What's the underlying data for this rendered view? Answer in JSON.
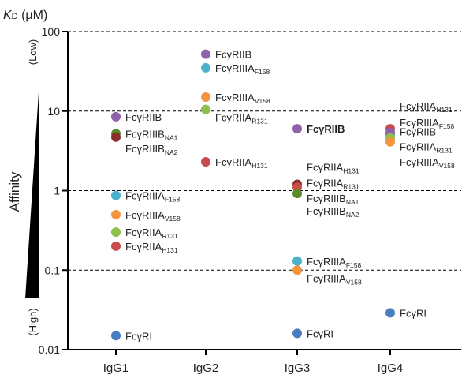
{
  "chart_data": {
    "type": "scatter",
    "ylabel_main": "Affinity",
    "y_title_prefix": "K",
    "y_title_subscript": "D",
    "y_title_unit": " (μM)",
    "y_scale": "log",
    "ylim": [
      0.01,
      100
    ],
    "y_ticks": [
      {
        "value": 100,
        "label": "100"
      },
      {
        "value": 10,
        "label": "10"
      },
      {
        "value": 1,
        "label": "1"
      },
      {
        "value": 0.1,
        "label": "0.1"
      },
      {
        "value": 0.01,
        "label": "0.01"
      }
    ],
    "gridlines": [
      100,
      10,
      1,
      0.1
    ],
    "low_label": "(Low)",
    "high_label": "(High)",
    "categories": [
      "IgG1",
      "IgG2",
      "IgG3",
      "IgG4"
    ],
    "points": [
      {
        "category": "IgG1",
        "value": 8.5,
        "color": "#8f62ab",
        "label_main": "FcγRIIB",
        "label_sub": "",
        "label_dy": 0
      },
      {
        "category": "IgG1",
        "value": 5.2,
        "color": "#5a8a2c",
        "label_main": "FcγRIIIB",
        "label_sub": "NA1",
        "label_dy": 0
      },
      {
        "category": "IgG1",
        "value": 4.7,
        "color": "#8a2e2c",
        "label_main": "FcγRIIIB",
        "label_sub": "NA2",
        "label_dy": 14
      },
      {
        "category": "IgG1",
        "value": 0.87,
        "color": "#48b2ca",
        "label_main": "FcγRIIIA",
        "label_sub": "F158",
        "label_dy": 0
      },
      {
        "category": "IgG1",
        "value": 0.5,
        "color": "#f5943e",
        "label_main": "FcγRIIIA",
        "label_sub": "V158",
        "label_dy": 0
      },
      {
        "category": "IgG1",
        "value": 0.3,
        "color": "#8fbf4d",
        "label_main": "FcγRIIA",
        "label_sub": "R131",
        "label_dy": 0
      },
      {
        "category": "IgG1",
        "value": 0.2,
        "color": "#c94b4b",
        "label_main": "FcγRIIA",
        "label_sub": "H131",
        "label_dy": 0
      },
      {
        "category": "IgG1",
        "value": 0.015,
        "color": "#4a7cc0",
        "label_main": "FcγRI",
        "label_sub": "",
        "label_dy": 0
      },
      {
        "category": "IgG2",
        "value": 52,
        "color": "#8f62ab",
        "label_main": "FcγRIIB",
        "label_sub": "",
        "label_dy": 0
      },
      {
        "category": "IgG2",
        "value": 35,
        "color": "#48b2ca",
        "label_main": "FcγRIIIA",
        "label_sub": "F158",
        "label_dy": 0
      },
      {
        "category": "IgG2",
        "value": 15,
        "color": "#f5943e",
        "label_main": "FcγRIIIA",
        "label_sub": "V158",
        "label_dy": 0
      },
      {
        "category": "IgG2",
        "value": 10.5,
        "color": "#8fbf4d",
        "label_main": "FcγRIIA",
        "label_sub": "R131",
        "label_dy": 10
      },
      {
        "category": "IgG2",
        "value": 2.3,
        "color": "#c94b4b",
        "label_main": "FcγRIIA",
        "label_sub": "H131",
        "label_dy": 0
      },
      {
        "category": "IgG3",
        "value": 6.0,
        "color": "#8f62ab",
        "label_main": "FcγRIIB",
        "label_sub": "",
        "label_dy": 0,
        "bold": true
      },
      {
        "category": "IgG3",
        "value": 1.2,
        "color": "#8a2e2c",
        "label_main": "FcγRIIA",
        "label_sub": "H131",
        "label_dy": -22
      },
      {
        "category": "IgG3",
        "value": 1.1,
        "color": "#c94b4b",
        "label_main": "FcγRIIA",
        "label_sub": "R131",
        "label_dy": -6
      },
      {
        "category": "IgG3",
        "value": 0.92,
        "color": "#5a8a2c",
        "label_main": "FcγRIIIB",
        "label_sub": "NA1",
        "label_dy": 6
      },
      {
        "category": "IgG3",
        "value": 0.92,
        "color": "#5a8a2c",
        "label_main": "FcγRIIIB",
        "label_sub": "NA2",
        "label_dy": 22,
        "no_marker": true
      },
      {
        "category": "IgG3",
        "value": 0.13,
        "color": "#48b2ca",
        "label_main": "FcγRIIIA",
        "label_sub": "F158",
        "label_dy": 0
      },
      {
        "category": "IgG3",
        "value": 0.1,
        "color": "#f5943e",
        "label_main": "FcγRIIIA",
        "label_sub": "V158",
        "label_dy": 10
      },
      {
        "category": "IgG3",
        "value": 0.016,
        "color": "#4a7cc0",
        "label_main": "FcγRI",
        "label_sub": "",
        "label_dy": 0
      },
      {
        "category": "IgG4",
        "value": 6.0,
        "color": "#c94b4b",
        "label_main": "FcγRIIA",
        "label_sub": "H131",
        "label_dy": -29
      },
      {
        "category": "IgG4",
        "value": 5.0,
        "color": "#48b2ca",
        "label_main": "FcγRIIIA",
        "label_sub": "F158",
        "label_dy": -16
      },
      {
        "category": "IgG4",
        "value": 5.4,
        "color": "#8f62ab",
        "label_main": "FcγRIIB",
        "label_sub": "",
        "label_dy": -1
      },
      {
        "category": "IgG4",
        "value": 4.6,
        "color": "#8fbf4d",
        "label_main": "FcγRIIA",
        "label_sub": "R131",
        "label_dy": 11
      },
      {
        "category": "IgG4",
        "value": 4.1,
        "color": "#f5943e",
        "label_main": "FcγRIIIA",
        "label_sub": "V158",
        "label_dy": 25
      },
      {
        "category": "IgG4",
        "value": 0.029,
        "color": "#4a7cc0",
        "label_main": "FcγRI",
        "label_sub": "",
        "label_dy": 0
      }
    ]
  }
}
